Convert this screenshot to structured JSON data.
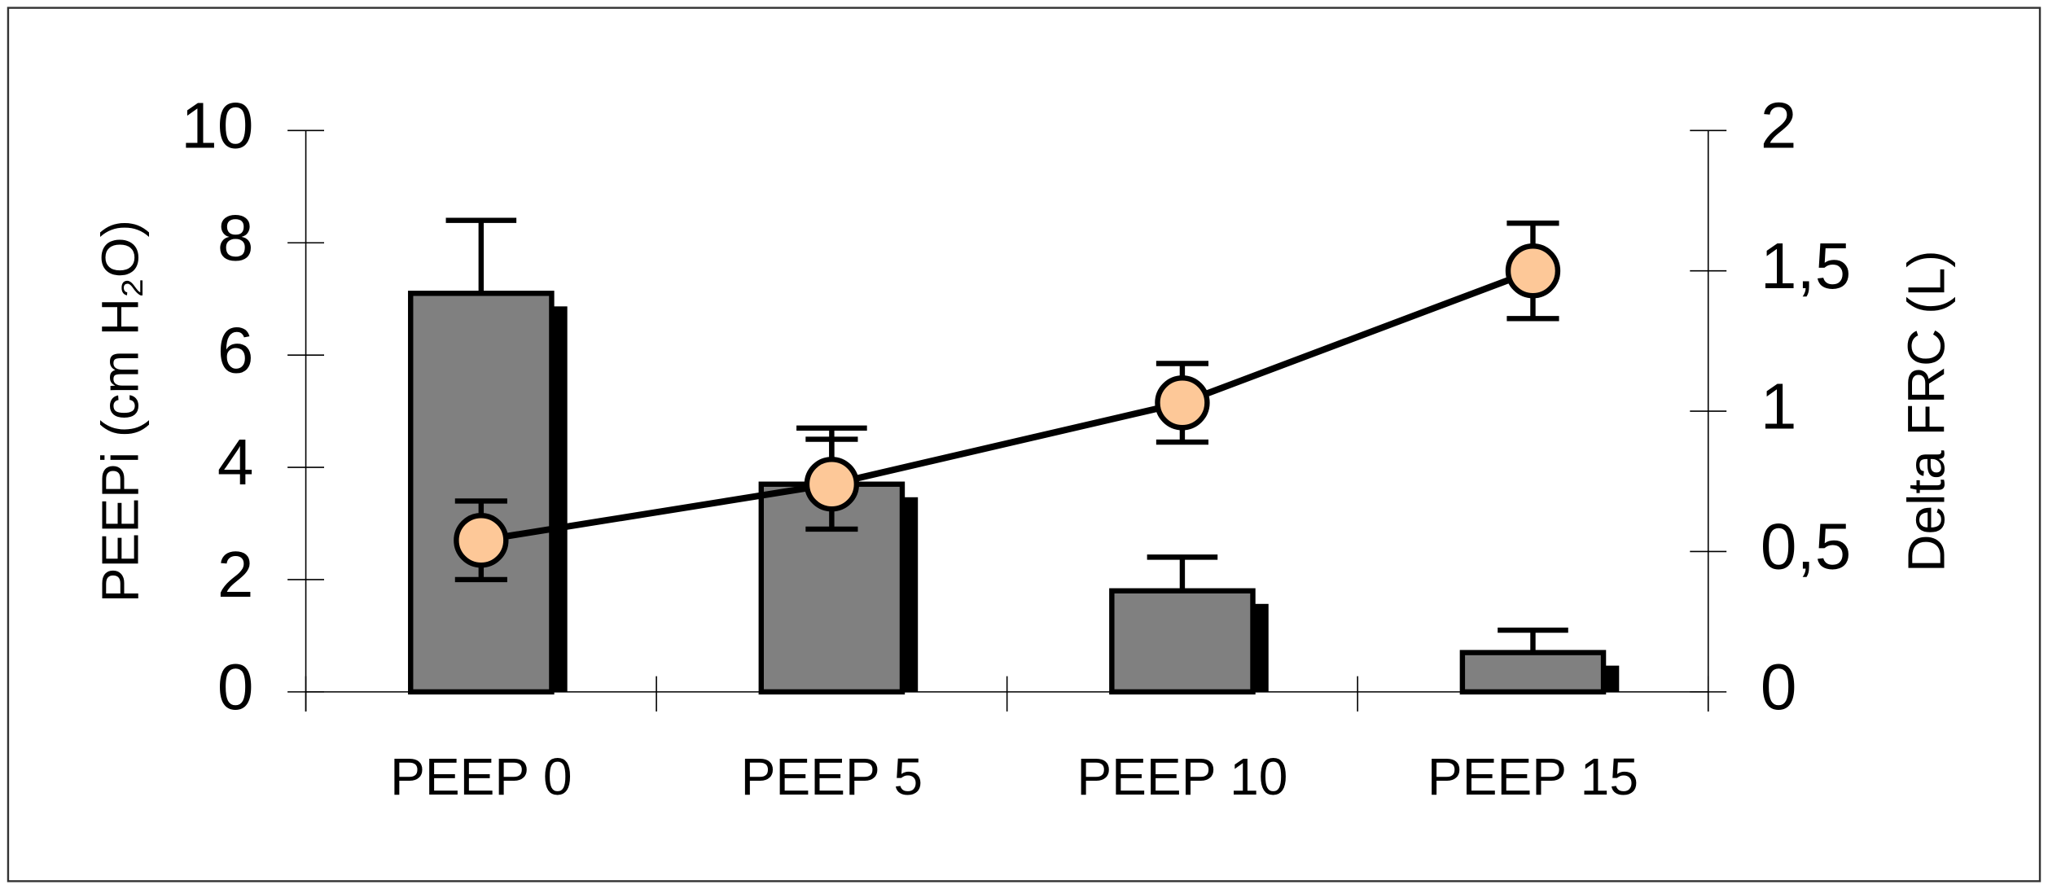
{
  "chart_data": {
    "type": "bar",
    "categories": [
      "PEEP 0",
      "PEEP 5",
      "PEEP 10",
      "PEEP 15"
    ],
    "y_label": "PEEPi (cm H₂O)",
    "y2_label": "Delta FRC (L)",
    "ylim": [
      0,
      10
    ],
    "yticks": [
      0,
      2,
      4,
      6,
      8,
      10
    ],
    "y2lim": [
      0,
      2
    ],
    "y2ticks": [
      0,
      {
        "value": 0.5,
        "label": "0,5"
      },
      1,
      {
        "value": 1.5,
        "label": "1,5"
      },
      2
    ],
    "series": [
      {
        "type": "bar",
        "name": "PEEPi",
        "color": "#808080",
        "values": [
          7.1,
          3.7,
          1.8,
          0.7
        ],
        "errors": [
          1.3,
          1.0,
          0.6,
          0.4
        ]
      },
      {
        "type": "line",
        "name": "Delta FRC",
        "axis": "y2",
        "color": "#fdc898",
        "values": [
          0.54,
          0.74,
          1.03,
          1.5
        ],
        "errors": [
          0.14,
          0.16,
          0.14,
          0.17
        ]
      }
    ]
  }
}
